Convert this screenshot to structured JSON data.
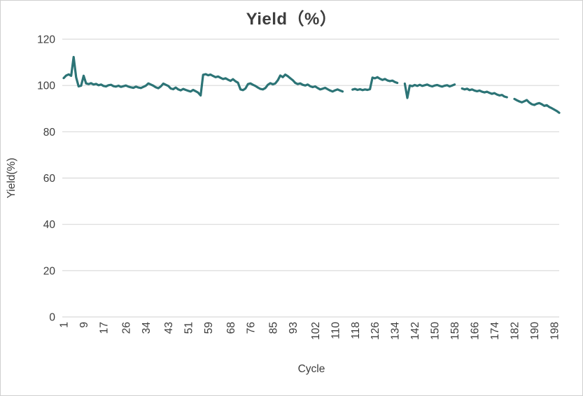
{
  "chart_data": {
    "type": "line",
    "title": "Yield（%）",
    "xlabel": "Cycle",
    "ylabel": "Yield(%)",
    "legend": "none",
    "grid": "horizontal-only",
    "xlim": [
      1,
      200
    ],
    "ylim": [
      0,
      120
    ],
    "x_tick_labels": [
      "1",
      "9",
      "17",
      "26",
      "34",
      "43",
      "51",
      "59",
      "68",
      "76",
      "85",
      "93",
      "102",
      "110",
      "118",
      "126",
      "134",
      "142",
      "150",
      "158",
      "166",
      "174",
      "182",
      "190",
      "198"
    ],
    "x_tick_values": [
      1,
      9,
      17,
      26,
      34,
      43,
      51,
      59,
      68,
      76,
      85,
      93,
      102,
      110,
      118,
      126,
      134,
      142,
      150,
      158,
      166,
      174,
      182,
      190,
      198
    ],
    "y_tick_labels": [
      "0",
      "20",
      "40",
      "60",
      "80",
      "100",
      "120"
    ],
    "y_tick_values": [
      0,
      20,
      40,
      60,
      80,
      100,
      120
    ],
    "colors": {
      "line": "#2c7476",
      "grid": "#d9d9d9",
      "text": "#3d3d3d",
      "background": "#ffffff",
      "border": "#cfcfcf"
    },
    "series": [
      {
        "name": "Yield(%)",
        "x_start": 1,
        "x_step": 1,
        "values": [
          103.2,
          104.3,
          104.8,
          104.2,
          112.3,
          103.5,
          99.6,
          99.9,
          104.2,
          100.9,
          100.6,
          101.0,
          100.4,
          100.7,
          100.1,
          100.4,
          99.8,
          99.6,
          100.1,
          100.3,
          99.7,
          99.5,
          99.9,
          99.4,
          99.7,
          100.0,
          99.5,
          99.2,
          99.0,
          99.5,
          99.1,
          98.9,
          99.4,
          99.9,
          100.9,
          100.4,
          99.9,
          99.2,
          98.8,
          99.6,
          100.8,
          100.3,
          99.8,
          98.7,
          98.4,
          99.1,
          98.3,
          97.9,
          98.5,
          98.1,
          97.7,
          97.4,
          98.1,
          97.5,
          96.9,
          95.7,
          104.6,
          104.9,
          104.4,
          104.7,
          104.1,
          103.6,
          103.9,
          103.3,
          102.8,
          103.1,
          102.5,
          102.0,
          102.7,
          101.8,
          101.2,
          98.3,
          98.0,
          98.7,
          100.6,
          100.9,
          100.3,
          99.8,
          99.1,
          98.5,
          98.3,
          98.9,
          100.3,
          101.0,
          100.5,
          100.9,
          102.3,
          104.3,
          103.6,
          104.7,
          104.0,
          103.1,
          102.3,
          101.1,
          100.6,
          100.9,
          100.3,
          100.0,
          100.4,
          99.7,
          99.3,
          99.6,
          98.9,
          98.3,
          98.6,
          99.0,
          98.4,
          97.8,
          97.4,
          97.9,
          98.3,
          97.8,
          97.4,
          null,
          null,
          null,
          98.2,
          98.5,
          98.1,
          98.4,
          98.0,
          98.3,
          98.1,
          98.4,
          103.4,
          103.1,
          103.6,
          102.9,
          102.4,
          102.8,
          102.2,
          101.9,
          102.1,
          101.5,
          101.1,
          null,
          null,
          100.8,
          94.6,
          100.0,
          99.7,
          100.2,
          99.8,
          100.3,
          99.8,
          100.1,
          100.4,
          99.9,
          99.6,
          100.0,
          100.2,
          99.8,
          99.5,
          99.9,
          100.1,
          99.6,
          100.0,
          100.4,
          null,
          null,
          98.7,
          98.3,
          98.6,
          98.0,
          98.3,
          97.8,
          97.5,
          97.8,
          97.3,
          97.0,
          97.3,
          96.8,
          96.4,
          96.7,
          96.1,
          95.7,
          95.9,
          95.2,
          94.9,
          null,
          null,
          94.2,
          93.6,
          93.1,
          92.7,
          93.2,
          93.7,
          92.6,
          91.9,
          91.6,
          92.1,
          92.4,
          91.9,
          91.2,
          91.5,
          90.7,
          90.2,
          89.6,
          89.0,
          88.2
        ]
      }
    ]
  }
}
